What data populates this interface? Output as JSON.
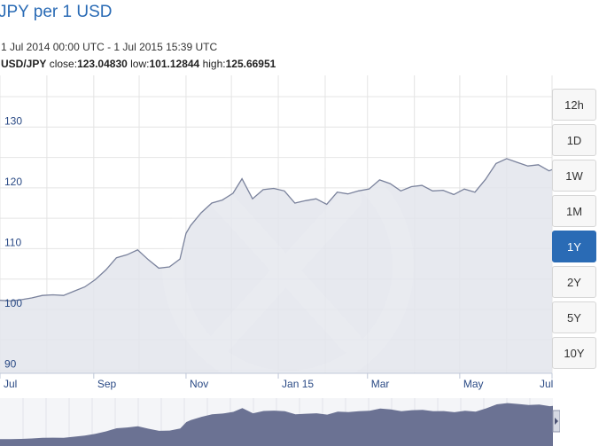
{
  "title": "JPY per 1 USD",
  "range_text": "1 Jul 2014 00:00 UTC - 1 Jul 2015 15:39 UTC",
  "stats": {
    "pair": "USD/JPY",
    "close_label": "close:",
    "close": "123.04830",
    "low_label": "low:",
    "low": "101.12844",
    "high_label": "high:",
    "high": "125.66951"
  },
  "range_buttons": [
    {
      "label": "12h",
      "active": false
    },
    {
      "label": "1D",
      "active": false
    },
    {
      "label": "1W",
      "active": false
    },
    {
      "label": "1M",
      "active": false
    },
    {
      "label": "1Y",
      "active": true
    },
    {
      "label": "2Y",
      "active": false
    },
    {
      "label": "5Y",
      "active": false
    },
    {
      "label": "10Y",
      "active": false
    }
  ],
  "colors": {
    "line": "#7a829c",
    "fill": "#e3e5ec",
    "mini_fill": "#6b7293",
    "accent": "#2a6bb5",
    "grid": "#e4e4e4"
  },
  "watermark_icon": "xe-logo-icon",
  "chart_data": {
    "type": "area",
    "title": "JPY per 1 USD",
    "xlabel": "",
    "ylabel": "",
    "x_tick_labels": [
      "Jul",
      "Sep",
      "Nov",
      "Jan 15",
      "Mar",
      "May",
      "Jul"
    ],
    "x_tick_dates": [
      "2014-07-01",
      "2014-09-01",
      "2014-11-01",
      "2015-01-01",
      "2015-03-01",
      "2015-05-01",
      "2015-07-01"
    ],
    "y_ticks": [
      90,
      100,
      110,
      120,
      130
    ],
    "ylim": [
      89.5,
      138.5
    ],
    "grid": true,
    "series": [
      {
        "x": [
          "2014-07-01",
          "2014-07-08",
          "2014-07-15",
          "2014-07-22",
          "2014-07-29",
          "2014-08-05",
          "2014-08-12",
          "2014-08-19",
          "2014-08-26",
          "2014-09-02",
          "2014-09-09",
          "2014-09-16",
          "2014-09-23",
          "2014-09-30",
          "2014-10-07",
          "2014-10-14",
          "2014-10-21",
          "2014-10-28",
          "2014-11-01",
          "2014-11-04",
          "2014-11-11",
          "2014-11-18",
          "2014-11-25",
          "2014-12-02",
          "2014-12-08",
          "2014-12-15",
          "2014-12-22",
          "2014-12-29",
          "2015-01-05",
          "2015-01-12",
          "2015-01-19",
          "2015-01-26",
          "2015-02-02",
          "2015-02-09",
          "2015-02-16",
          "2015-02-23",
          "2015-03-02",
          "2015-03-09",
          "2015-03-16",
          "2015-03-23",
          "2015-03-30",
          "2015-04-06",
          "2015-04-13",
          "2015-04-20",
          "2015-04-27",
          "2015-05-04",
          "2015-05-11",
          "2015-05-18",
          "2015-05-25",
          "2015-06-01",
          "2015-06-08",
          "2015-06-15",
          "2015-06-22",
          "2015-06-29",
          "2015-07-01"
        ],
        "y": [
          101.5,
          101.4,
          101.6,
          101.9,
          102.3,
          102.4,
          102.3,
          103.0,
          103.7,
          104.9,
          106.5,
          108.5,
          109.0,
          109.8,
          108.2,
          106.8,
          107.0,
          108.3,
          112.5,
          113.8,
          115.9,
          117.5,
          118.0,
          119.1,
          121.5,
          118.2,
          119.7,
          119.9,
          119.5,
          117.5,
          117.9,
          118.2,
          117.3,
          119.3,
          119.0,
          119.5,
          119.8,
          121.3,
          120.7,
          119.5,
          120.2,
          120.4,
          119.5,
          119.6,
          118.9,
          119.8,
          119.3,
          121.4,
          124.0,
          124.8,
          124.2,
          123.6,
          123.8,
          122.8,
          123.0
        ]
      }
    ]
  }
}
